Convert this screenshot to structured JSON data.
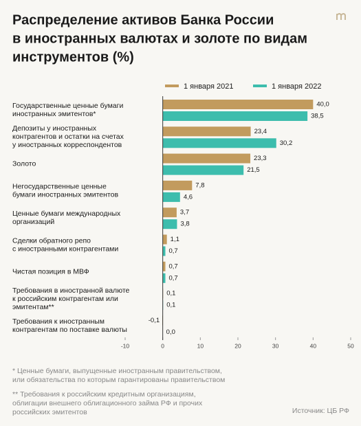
{
  "chart_data": {
    "type": "bar",
    "orientation": "horizontal",
    "title": [
      "Распределение активов Банка России",
      "в иностранных валютах и золоте по видам",
      "инструментов (%)"
    ],
    "categories": [
      [
        "Государственные ценные бумаги",
        "иностранных эмитентов*"
      ],
      [
        "Депозиты у иностранных",
        "контрагентов и остатки на счетах",
        "у иностранных корреспондентов"
      ],
      [
        "Золото"
      ],
      [
        "Негосударственные ценные",
        "бумаги иностранных эмитентов"
      ],
      [
        "Ценные бумаги международных",
        "организаций"
      ],
      [
        "Сделки обратного репо",
        "с иностранными контрагентами"
      ],
      [
        "Чистая позиция в МВФ"
      ],
      [
        "Требования в иностранной валюте",
        "к российским контрагентам или",
        "эмитентам**"
      ],
      [
        "Требования к иностранным",
        "контрагентам по поставке валюты"
      ]
    ],
    "series": [
      {
        "name": "1 января 2021",
        "color": "#c29b5e",
        "values": [
          40.0,
          23.4,
          23.3,
          7.8,
          3.7,
          1.1,
          0.7,
          0.1,
          -0.1
        ],
        "value_labels": [
          "40,0",
          "23,4",
          "23,3",
          "7,8",
          "3,7",
          "1,1",
          "0,7",
          "0,1",
          "-0,1"
        ]
      },
      {
        "name": "1 января 2022",
        "color": "#3dbdad",
        "values": [
          38.5,
          30.2,
          21.5,
          4.6,
          3.8,
          0.7,
          0.7,
          0.1,
          0.0
        ],
        "value_labels": [
          "38,5",
          "30,2",
          "21,5",
          "4,6",
          "3,8",
          "0,7",
          "0,7",
          "0,1",
          "0,0"
        ]
      }
    ],
    "xlim": [
      -10,
      50
    ],
    "xticks": [
      -10,
      0,
      10,
      20,
      30,
      40,
      50
    ],
    "footnotes": [
      [
        "* Ценные бумаги, выпущенные иностранным правительством,",
        "или обязательства по которым гарантированы правительством"
      ],
      [
        "** Требования к российским кредитным организациям,",
        "облигации внешнего облигационного займа РФ и прочих",
        "российских эмитентов"
      ]
    ],
    "source": "Источник: ЦБ РФ"
  }
}
